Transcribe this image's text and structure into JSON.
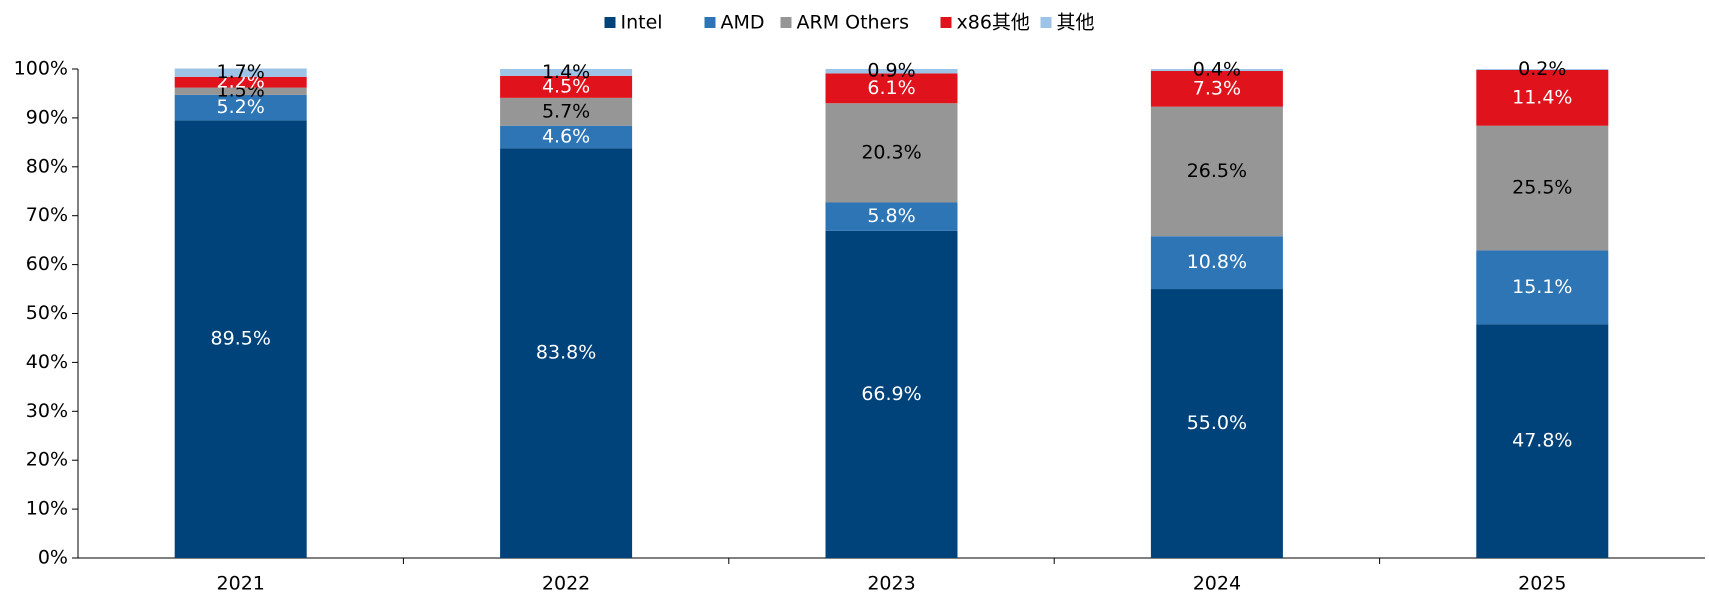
{
  "chart_data": {
    "type": "stacked_bar",
    "categories": [
      "2021",
      "2022",
      "2023",
      "2024",
      "2025"
    ],
    "series": [
      {
        "name": "Intel",
        "color": "#00427a",
        "values": [
          89.5,
          83.8,
          66.9,
          55.0,
          47.8
        ],
        "value_labels": [
          "89.5%",
          "83.8%",
          "66.9%",
          "55.0%",
          "47.8%"
        ]
      },
      {
        "name": "AMD",
        "color": "#2e75b6",
        "values": [
          5.2,
          4.6,
          5.8,
          10.8,
          15.1
        ],
        "value_labels": [
          "5.2%",
          "4.6%",
          "5.8%",
          "10.8%",
          "15.1%"
        ]
      },
      {
        "name": "ARM Others",
        "color": "#969696",
        "values": [
          1.5,
          5.7,
          20.3,
          26.5,
          25.5
        ],
        "value_labels": [
          "1.5%",
          "5.7%",
          "20.3%",
          "26.5%",
          "25.5%"
        ]
      },
      {
        "name": "x86其他",
        "color": "#e0121b",
        "values": [
          2.2,
          4.5,
          6.1,
          7.3,
          11.4
        ],
        "value_labels": [
          "2.2%",
          "4.5%",
          "6.1%",
          "7.3%",
          "11.4%"
        ]
      },
      {
        "name": "其他",
        "color": "#9dc3e6",
        "values": [
          1.7,
          1.4,
          0.9,
          0.4,
          0.2
        ],
        "value_labels": [
          "1.7%",
          "1.4%",
          "0.9%",
          "0.4%",
          "0.2%"
        ]
      }
    ],
    "ylim": [
      0,
      100
    ],
    "yticks": [
      {
        "value": 0,
        "label": "0%"
      },
      {
        "value": 10,
        "label": "10%"
      },
      {
        "value": 20,
        "label": "20%"
      },
      {
        "value": 30,
        "label": "30%"
      },
      {
        "value": 40,
        "label": "40%"
      },
      {
        "value": 50,
        "label": "50%"
      },
      {
        "value": 60,
        "label": "60%"
      },
      {
        "value": 70,
        "label": "70%"
      },
      {
        "value": 80,
        "label": "80%"
      },
      {
        "value": 90,
        "label": "90%"
      },
      {
        "value": 100,
        "label": "100%"
      }
    ],
    "grid": false,
    "legend": "top"
  }
}
